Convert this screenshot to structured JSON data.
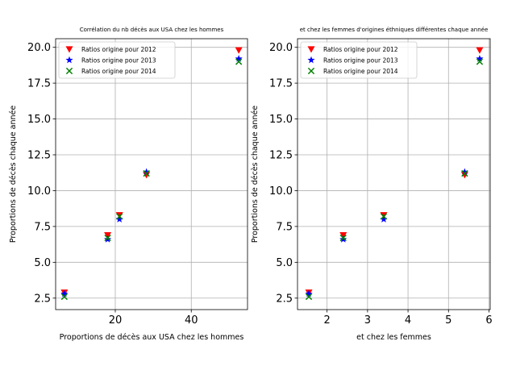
{
  "chart_data": [
    {
      "type": "scatter",
      "title": "Corrélation du nb décès aux USA chez les hommes",
      "xlabel": "Proportions de décès aux USA chez les hommes",
      "ylabel": "Proportions de décès chaque année",
      "xlim": [
        4.3,
        54.8
      ],
      "ylim": [
        1.7,
        20.6
      ],
      "xticks": [
        20,
        40
      ],
      "yticks": [
        2.5,
        5.0,
        7.5,
        10.0,
        12.5,
        15.0,
        17.5,
        20.0
      ],
      "grid": true,
      "legend_position": "top-left",
      "series": [
        {
          "name": "Ratios origine pour 2012",
          "marker": "triangle-down",
          "color": "#ff0000",
          "x": [
            6.6,
            18.0,
            21.1,
            28.2,
            52.5
          ],
          "y": [
            2.9,
            6.9,
            8.3,
            11.1,
            19.8
          ]
        },
        {
          "name": "Ratios origine pour 2013",
          "marker": "star",
          "color": "#0000ff",
          "x": [
            6.6,
            18.0,
            21.1,
            28.2,
            52.5
          ],
          "y": [
            2.8,
            6.6,
            8.0,
            11.3,
            19.2
          ]
        },
        {
          "name": "Ratios origine pour 2014",
          "marker": "x",
          "color": "#008000",
          "x": [
            6.6,
            18.0,
            21.1,
            28.2,
            52.5
          ],
          "y": [
            2.6,
            6.7,
            8.2,
            11.2,
            19.0
          ]
        }
      ]
    },
    {
      "type": "scatter",
      "title": "et chez les femmes d'origines éthniques différentes chaque année",
      "xlabel": "et chez les femmes",
      "ylabel": "Proportions de décès chaque année",
      "xlim": [
        1.27,
        6.03
      ],
      "ylim": [
        1.7,
        20.6
      ],
      "xticks": [
        2,
        3,
        4,
        5,
        6
      ],
      "yticks": [
        2.5,
        5.0,
        7.5,
        10.0,
        12.5,
        15.0,
        17.5,
        20.0
      ],
      "grid": true,
      "legend_position": "top-left",
      "series": [
        {
          "name": "Ratios origine pour 2012",
          "marker": "triangle-down",
          "color": "#ff0000",
          "x": [
            1.55,
            2.4,
            3.4,
            5.4,
            5.77
          ],
          "y": [
            2.9,
            6.9,
            8.3,
            11.1,
            19.8
          ]
        },
        {
          "name": "Ratios origine pour 2013",
          "marker": "star",
          "color": "#0000ff",
          "x": [
            1.55,
            2.4,
            3.4,
            5.4,
            5.77
          ],
          "y": [
            2.8,
            6.6,
            8.0,
            11.3,
            19.2
          ]
        },
        {
          "name": "Ratios origine pour 2014",
          "marker": "x",
          "color": "#008000",
          "x": [
            1.55,
            2.4,
            3.4,
            5.4,
            5.77
          ],
          "y": [
            2.6,
            6.7,
            8.2,
            11.2,
            19.0
          ]
        }
      ]
    }
  ]
}
